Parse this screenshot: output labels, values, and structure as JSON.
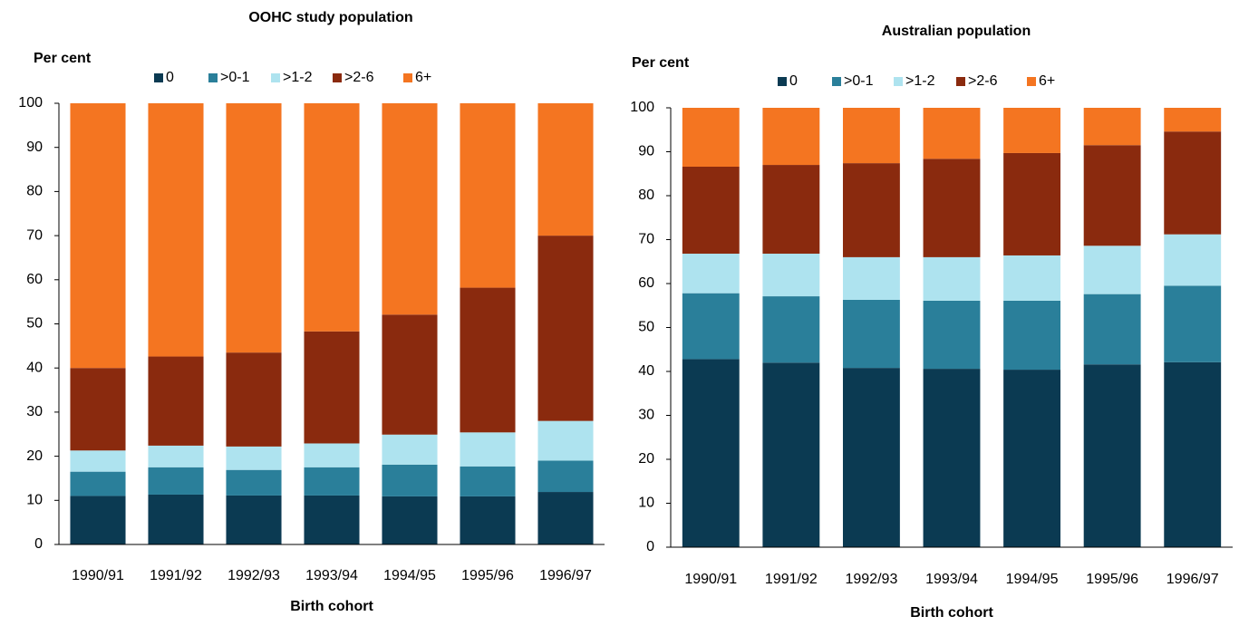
{
  "chart_data": [
    {
      "type": "stacked_bar",
      "title": "OOHC study population",
      "y_label": "Per cent",
      "x_label": "Birth cohort",
      "categories": [
        "1990/91",
        "1991/92",
        "1992/93",
        "1993/94",
        "1994/95",
        "1995/96",
        "1996/97"
      ],
      "series": [
        {
          "name": "0",
          "color": "#0b3a52",
          "values": [
            11,
            11.3,
            11.1,
            11.1,
            10.9,
            10.9,
            11.9
          ]
        },
        {
          "name": ">0-1",
          "color": "#2a7f9a",
          "values": [
            5.5,
            6.2,
            5.8,
            6.4,
            7.2,
            6.8,
            7.1
          ]
        },
        {
          "name": ">1-2",
          "color": "#aee3ef",
          "values": [
            4.8,
            4.9,
            5.3,
            5.4,
            6.8,
            7.7,
            9
          ]
        },
        {
          "name": ">2-6",
          "color": "#8a2a0e",
          "values": [
            18.7,
            20.2,
            21.3,
            25.4,
            27.2,
            32.8,
            42
          ]
        },
        {
          "name": "6+",
          "color": "#f47521",
          "values": [
            60,
            57.4,
            56.5,
            51.7,
            47.9,
            41.8,
            30
          ]
        }
      ],
      "ylim": [
        0,
        100
      ],
      "yticks": [
        0,
        10,
        20,
        30,
        40,
        50,
        60,
        70,
        80,
        90,
        100
      ],
      "grid": false
    },
    {
      "type": "stacked_bar",
      "title": "Australian population",
      "y_label": "Per cent",
      "x_label": "Birth cohort",
      "categories": [
        "1990/91",
        "1991/92",
        "1992/93",
        "1993/94",
        "1994/95",
        "1995/96",
        "1996/97"
      ],
      "series": [
        {
          "name": "0",
          "color": "#0b3a52",
          "values": [
            42.8,
            42,
            40.8,
            40.6,
            40.4,
            41.6,
            42.1
          ]
        },
        {
          "name": ">0-1",
          "color": "#2a7f9a",
          "values": [
            15,
            15.1,
            15.5,
            15.5,
            15.7,
            16,
            17.4
          ]
        },
        {
          "name": ">1-2",
          "color": "#aee3ef",
          "values": [
            9,
            9.7,
            9.7,
            9.9,
            10.3,
            11,
            11.7
          ]
        },
        {
          "name": ">2-6",
          "color": "#8a2a0e",
          "values": [
            19.8,
            20.2,
            21.4,
            22.4,
            23.3,
            22.9,
            23.4
          ]
        },
        {
          "name": "6+",
          "color": "#f47521",
          "values": [
            13.4,
            13,
            12.6,
            11.6,
            10.3,
            8.5,
            5.4
          ]
        }
      ],
      "ylim": [
        0,
        100
      ],
      "yticks": [
        0,
        10,
        20,
        30,
        40,
        50,
        60,
        70,
        80,
        90,
        100
      ],
      "grid": false
    }
  ]
}
